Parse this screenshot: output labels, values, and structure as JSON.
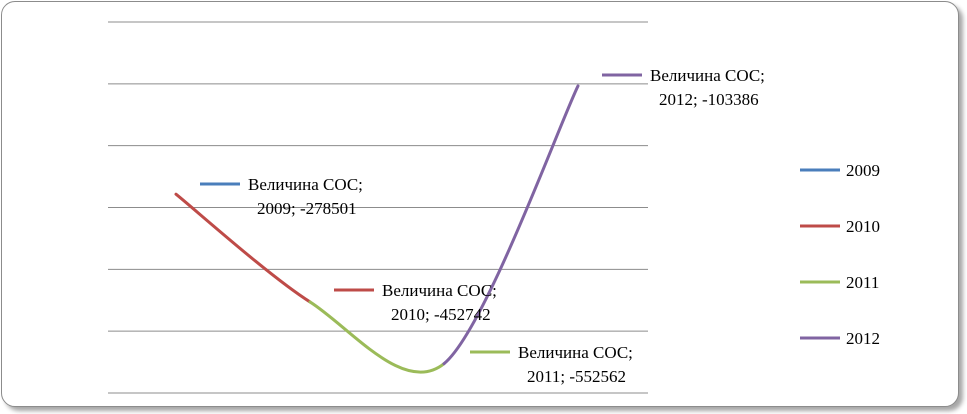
{
  "chart_data": {
    "type": "line",
    "title": "",
    "xlabel": "",
    "ylabel": "",
    "grid": true,
    "legend_position": "right",
    "ylim": [
      -600000,
      0
    ],
    "series": [
      {
        "name": "2009",
        "color": "#4a7ebb",
        "label_line1": "Величина СОС;",
        "label_line2": "2009; -278501",
        "x": 2009,
        "y": -278501
      },
      {
        "name": "2010",
        "color": "#be4b48",
        "label_line1": "Величина СОС;",
        "label_line2": "2010; -452742",
        "x": 2010,
        "y": -452742
      },
      {
        "name": "2011",
        "color": "#9bbb59",
        "label_line1": "Величина СОС;",
        "label_line2": "2011; -552562",
        "x": 2011,
        "y": -552562
      },
      {
        "name": "2012",
        "color": "#8064a2",
        "label_line1": "Величина СОС;",
        "label_line2": "2012; -103386",
        "x": 2012,
        "y": -103386
      }
    ]
  }
}
